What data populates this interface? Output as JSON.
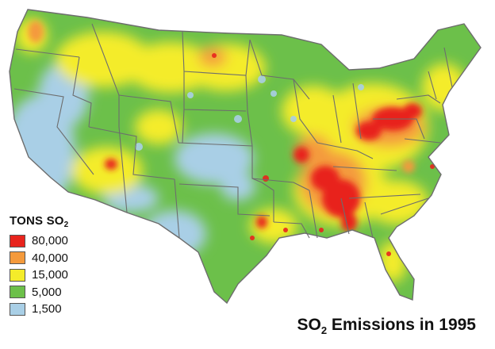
{
  "title": {
    "pre": "SO",
    "sub": "2",
    "post": " Emissions in 1995"
  },
  "legend": {
    "title_pre": "TONS SO",
    "title_sub": "2",
    "items": [
      {
        "label": "80,000",
        "color": "#e8241d"
      },
      {
        "label": "40,000",
        "color": "#f49a3c"
      },
      {
        "label": "15,000",
        "color": "#f4ec2a"
      },
      {
        "label": "5,000",
        "color": "#6cc04a"
      },
      {
        "label": "1,500",
        "color": "#a9cfe6"
      }
    ]
  },
  "colors": {
    "water": "#a9cfe6",
    "low": "#6cc04a",
    "medium": "#f4ec2a",
    "high": "#f49a3c",
    "very_high": "#e8241d",
    "borders": "#6d6d6d"
  }
}
